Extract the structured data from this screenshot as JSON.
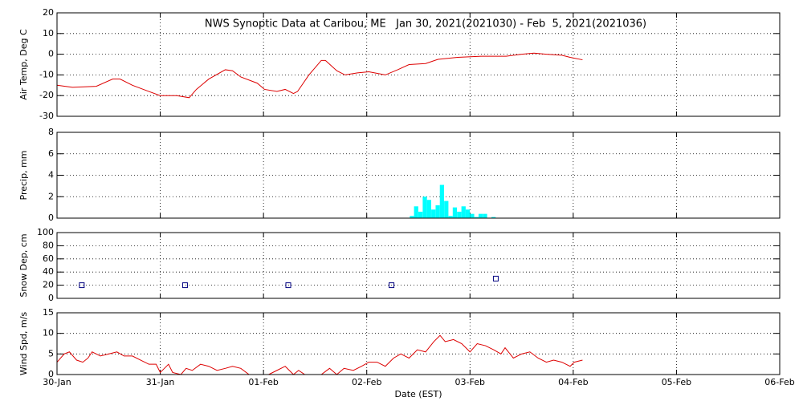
{
  "chart_data": [
    {
      "type": "line",
      "title": "NWS Synoptic Data at Caribou, ME   Jan 30, 2021(2021030) - Feb  5, 2021(2021036)",
      "ylabel": "Air Temp, Deg C",
      "color": "#dd0000",
      "grid": true,
      "xlim": [
        0,
        7
      ],
      "ylim": [
        -30,
        20
      ],
      "yticks": [
        -30,
        -20,
        -10,
        0,
        10,
        20
      ],
      "x": [
        0,
        0.15,
        0.38,
        0.54,
        0.61,
        0.73,
        0.89,
        1.0,
        1.16,
        1.28,
        1.35,
        1.47,
        1.63,
        1.7,
        1.78,
        1.94,
        2.01,
        2.13,
        2.21,
        2.29,
        2.33,
        2.44,
        2.56,
        2.6,
        2.71,
        2.79,
        2.91,
        3.02,
        3.18,
        3.3,
        3.41,
        3.57,
        3.69,
        3.88,
        4.11,
        4.35,
        4.5,
        4.62,
        4.74,
        4.89,
        4.97,
        5.09
      ],
      "values": [
        -15,
        -16,
        -15.5,
        -12,
        -12,
        -15,
        -18,
        -20,
        -20,
        -21,
        -17,
        -12,
        -7.5,
        -8,
        -11,
        -14,
        -17,
        -18,
        -17,
        -19,
        -18,
        -10,
        -3,
        -3,
        -8,
        -10,
        -9,
        -8.5,
        -10,
        -7.5,
        -5,
        -4.5,
        -2.5,
        -1.5,
        -1,
        -1,
        0,
        0.5,
        0,
        -0.5,
        -1.5,
        -2.7
      ]
    },
    {
      "type": "bar",
      "ylabel": "Precip, mm",
      "color": "#00ffff",
      "grid": true,
      "xlim": [
        0,
        7
      ],
      "ylim": [
        0,
        8
      ],
      "yticks": [
        0,
        2,
        4,
        6,
        8
      ],
      "x": [
        3.417,
        3.458,
        3.5,
        3.542,
        3.583,
        3.625,
        3.667,
        3.708,
        3.75,
        3.792,
        3.833,
        3.875,
        3.917,
        3.958,
        4.0,
        4.042,
        4.083,
        4.125,
        4.208
      ],
      "values": [
        0.2,
        1.1,
        0.6,
        2.0,
        1.7,
        0.8,
        1.2,
        3.1,
        1.6,
        0.2,
        1.0,
        0.6,
        1.1,
        0.8,
        0.4,
        0.1,
        0.4,
        0.4,
        0.1
      ]
    },
    {
      "type": "scatter",
      "ylabel": "Snow Dep, cm",
      "color": "#000080",
      "grid": true,
      "xlim": [
        0,
        7
      ],
      "ylim": [
        0,
        100
      ],
      "yticks": [
        0,
        20,
        40,
        60,
        80,
        100
      ],
      "x": [
        0.24,
        1.24,
        2.24,
        3.24,
        4.25
      ],
      "values": [
        20,
        20,
        20,
        20,
        30
      ]
    },
    {
      "type": "line",
      "ylabel": "Wind Spd, m/s",
      "xlabel": "Date (EST)",
      "color": "#dd0000",
      "grid": true,
      "xlim": [
        0,
        7
      ],
      "ylim": [
        0,
        15
      ],
      "yticks": [
        0,
        5,
        10,
        15
      ],
      "xticks": [
        {
          "value": 0,
          "label": "30-Jan"
        },
        {
          "value": 1,
          "label": "31-Jan"
        },
        {
          "value": 2,
          "label": "01-Feb"
        },
        {
          "value": 3,
          "label": "02-Feb"
        },
        {
          "value": 4,
          "label": "03-Feb"
        },
        {
          "value": 5,
          "label": "04-Feb"
        },
        {
          "value": 6,
          "label": "05-Feb"
        },
        {
          "value": 7,
          "label": "06-Feb"
        }
      ],
      "x": [
        0,
        0.07,
        0.12,
        0.19,
        0.25,
        0.3,
        0.34,
        0.42,
        0.5,
        0.58,
        0.65,
        0.73,
        0.81,
        0.89,
        0.96,
        1.0,
        1.08,
        1.12,
        1.2,
        1.25,
        1.31,
        1.39,
        1.47,
        1.55,
        1.63,
        1.7,
        1.78,
        1.86,
        1.94,
        2.05,
        2.13,
        2.21,
        2.29,
        2.34,
        2.4,
        2.56,
        2.64,
        2.71,
        2.78,
        2.87,
        2.95,
        3.02,
        3.1,
        3.18,
        3.26,
        3.33,
        3.41,
        3.49,
        3.57,
        3.65,
        3.71,
        3.76,
        3.84,
        3.92,
        4.0,
        4.07,
        4.15,
        4.23,
        4.3,
        4.34,
        4.42,
        4.5,
        4.58,
        4.66,
        4.74,
        4.81,
        4.89,
        4.97,
        5.01,
        5.09
      ],
      "values": [
        3,
        5,
        5.5,
        3.5,
        3,
        4,
        5.5,
        4.5,
        5,
        5.5,
        4.5,
        4.5,
        3.5,
        2.5,
        2.5,
        0.5,
        2.5,
        0.5,
        0,
        1.5,
        1,
        2.5,
        2,
        1,
        1.5,
        2,
        1.5,
        0,
        0,
        0,
        1,
        2,
        0,
        1,
        0,
        0,
        1.5,
        0,
        1.5,
        1,
        2,
        3,
        3,
        2,
        4,
        5,
        4,
        6,
        5.5,
        8,
        9.5,
        8,
        8.5,
        7.5,
        5.5,
        7.5,
        7,
        6,
        5,
        6.5,
        4,
        5,
        5.5,
        4,
        3,
        3.5,
        3,
        2,
        3,
        3.5
      ]
    }
  ]
}
